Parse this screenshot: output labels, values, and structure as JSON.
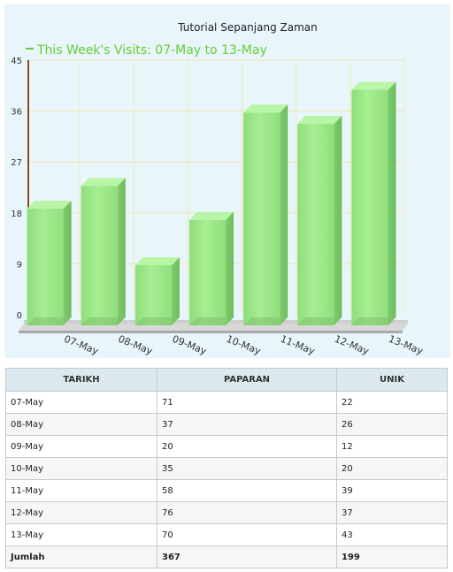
{
  "chart_data": {
    "type": "bar",
    "title": "Tutorial Sepanjang Zaman",
    "legend": {
      "label": "This Week's Visits: 07-May to 13-May",
      "color": "#66cc33",
      "placement": "top-left"
    },
    "categories": [
      "07-May",
      "08-May",
      "09-May",
      "10-May",
      "11-May",
      "12-May",
      "13-May"
    ],
    "series": [
      {
        "name": "This Week's Visits: 07-May to 13-May",
        "values": [
          20,
          24,
          10,
          18,
          37,
          35,
          41
        ]
      }
    ],
    "y_ticks": [
      "0",
      "9",
      "18",
      "27",
      "36",
      "45"
    ],
    "ylim": [
      0,
      45
    ],
    "grid": true,
    "bar_color": "#9ee88a",
    "grid_color": "#f0e6b0",
    "axis_color": "#8b4a1a"
  },
  "table": {
    "headers": [
      "TARIKH",
      "PAPARAN",
      "UNIK"
    ],
    "rows": [
      [
        "07-May",
        "71",
        "22"
      ],
      [
        "08-May",
        "37",
        "26"
      ],
      [
        "09-May",
        "20",
        "12"
      ],
      [
        "10-May",
        "35",
        "20"
      ],
      [
        "11-May",
        "58",
        "39"
      ],
      [
        "12-May",
        "76",
        "37"
      ],
      [
        "13-May",
        "70",
        "43"
      ]
    ],
    "total": [
      "Jumlah",
      "367",
      "199"
    ]
  }
}
